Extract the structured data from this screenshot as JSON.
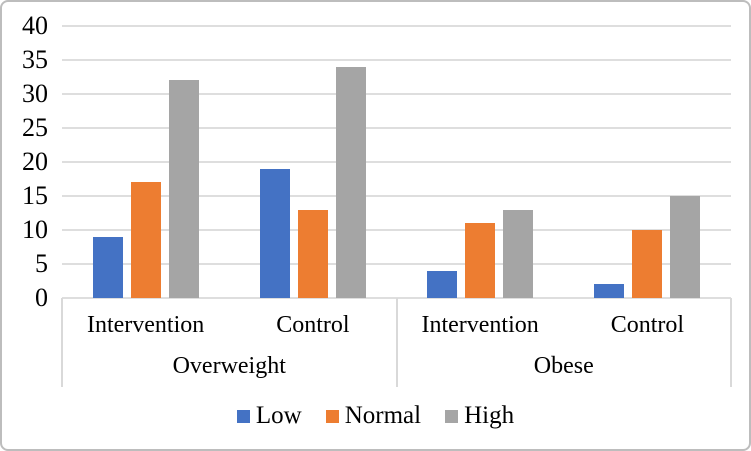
{
  "chart_data": {
    "type": "bar",
    "title": "",
    "xlabel": "",
    "ylabel": "",
    "ylim": [
      0,
      40
    ],
    "ytick_step": 5,
    "yticks": [
      0,
      5,
      10,
      15,
      20,
      25,
      30,
      35,
      40
    ],
    "grid": true,
    "legend_position": "bottom",
    "groups": [
      {
        "label": "Overweight",
        "categories": [
          "Intervention",
          "Control"
        ]
      },
      {
        "label": "Obese",
        "categories": [
          "Intervention",
          "Control"
        ]
      }
    ],
    "series": [
      {
        "name": "Low",
        "color": "#4472C4",
        "values": [
          9,
          19,
          4,
          2
        ]
      },
      {
        "name": "Normal",
        "color": "#ED7D31",
        "values": [
          17,
          13,
          11,
          10
        ]
      },
      {
        "name": "High",
        "color": "#A5A5A5",
        "values": [
          32,
          34,
          13,
          15
        ]
      }
    ]
  },
  "colors": {
    "gridline": "#dedede",
    "axis_separator": "#d9d9d9",
    "frame_border": "#bdbdbd",
    "background": "#ffffff",
    "text": "#000000"
  }
}
